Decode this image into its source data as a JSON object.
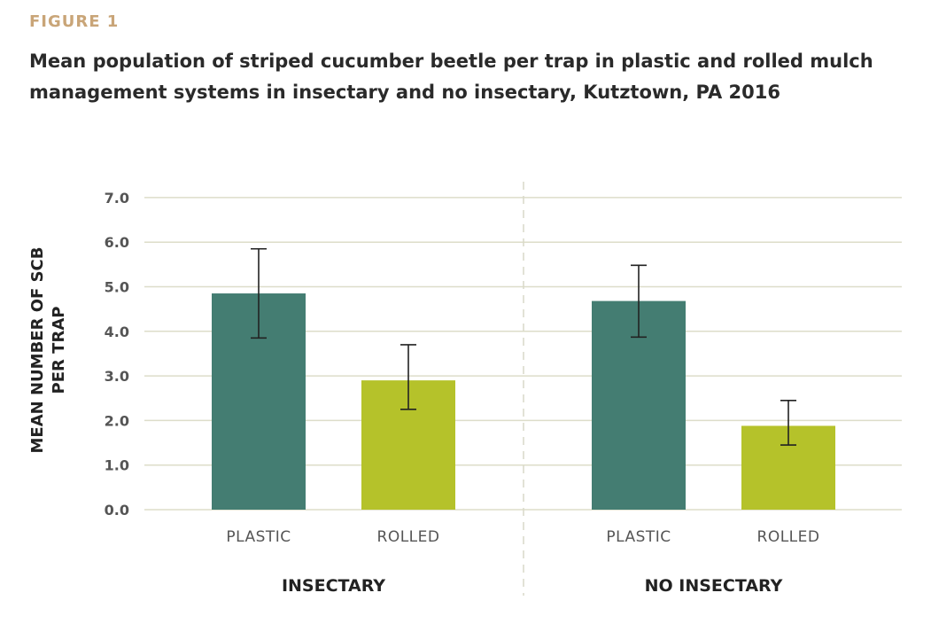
{
  "figure_label": "FIGURE 1",
  "chart_data": {
    "type": "bar",
    "title": "Mean population of striped cucumber beetle per trap in plastic and rolled mulch management systems in insectary and no insectary, Kutztown, PA 2016",
    "ylabel_lines": [
      "MEAN NUMBER OF SCB",
      "PER TRAP"
    ],
    "ylim": [
      0,
      7
    ],
    "yticks": [
      "0.0",
      "1.0",
      "2.0",
      "3.0",
      "4.0",
      "5.0",
      "6.0",
      "7.0"
    ],
    "grid": true,
    "colors": {
      "PLASTIC": "#447d72",
      "ROLLED": "#b5c22a"
    },
    "groups": [
      {
        "label": "INSECTARY",
        "bars": [
          {
            "category": "PLASTIC",
            "value": 4.85,
            "err_low": 3.85,
            "err_high": 5.85
          },
          {
            "category": "ROLLED",
            "value": 2.9,
            "err_low": 2.25,
            "err_high": 3.7
          }
        ]
      },
      {
        "label": "NO INSECTARY",
        "bars": [
          {
            "category": "PLASTIC",
            "value": 4.68,
            "err_low": 3.87,
            "err_high": 5.48
          },
          {
            "category": "ROLLED",
            "value": 1.88,
            "err_low": 1.45,
            "err_high": 2.45
          }
        ]
      }
    ]
  }
}
